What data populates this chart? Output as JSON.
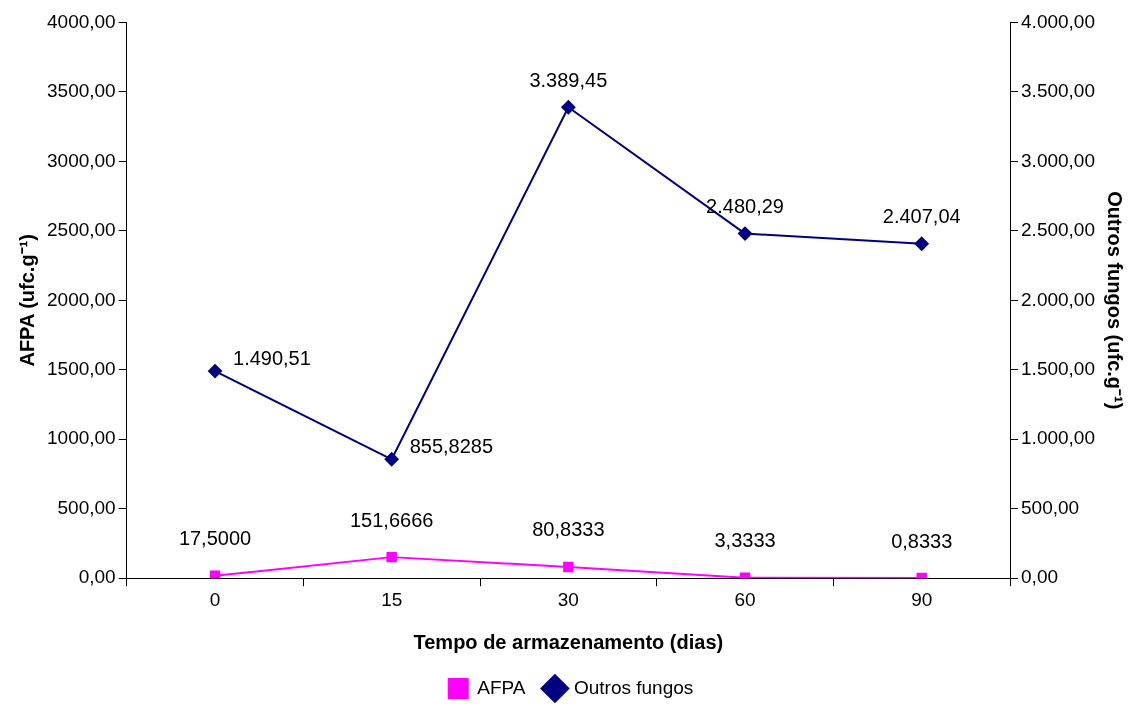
{
  "chart_data": {
    "type": "line",
    "xlabel": "Tempo de armazenamento (dias)",
    "ylabel": "AFPA (ufc.g⁻¹)",
    "y2label": "Outros fungos (ufc.g⁻¹)",
    "categories": [
      "0",
      "15",
      "30",
      "60",
      "90"
    ],
    "series": [
      {
        "name": "AFPA",
        "color": "#ff00ff",
        "marker": "square",
        "values": [
          17.5,
          151.6666,
          80.8333,
          3.3333,
          0.8333
        ],
        "value_labels": [
          "17,5000",
          "151,6666",
          "80,8333",
          "3,3333",
          "0,8333"
        ]
      },
      {
        "name": "Outros fungos",
        "color": "#000080",
        "marker": "diamond",
        "axis": "y2",
        "values": [
          1490.51,
          855.8285,
          3389.45,
          2480.29,
          2407.04
        ],
        "value_labels": [
          "1.490,51",
          "855,8285",
          "3.389,45",
          "2.480,29",
          "2.407,04"
        ]
      }
    ],
    "ylim": [
      0,
      4000
    ],
    "yticks": [
      {
        "value": 0,
        "label": "0,00"
      },
      {
        "value": 500,
        "label": "500,00"
      },
      {
        "value": 1000,
        "label": "1000,00"
      },
      {
        "value": 1500,
        "label": "1500,00"
      },
      {
        "value": 2000,
        "label": "2000,00"
      },
      {
        "value": 2500,
        "label": "2500,00"
      },
      {
        "value": 3000,
        "label": "3000,00"
      },
      {
        "value": 3500,
        "label": "3500,00"
      },
      {
        "value": 4000,
        "label": "4000,00"
      }
    ],
    "y2lim": [
      0,
      4000
    ],
    "y2ticks": [
      {
        "value": 0,
        "label": "0,00"
      },
      {
        "value": 500,
        "label": "500,00"
      },
      {
        "value": 1000,
        "label": "1.000,00"
      },
      {
        "value": 1500,
        "label": "1.500,00"
      },
      {
        "value": 2000,
        "label": "2.000,00"
      },
      {
        "value": 2500,
        "label": "2.500,00"
      },
      {
        "value": 3000,
        "label": "3.000,00"
      },
      {
        "value": 3500,
        "label": "3.500,00"
      },
      {
        "value": 4000,
        "label": "4.000,00"
      }
    ],
    "grid": false,
    "legend": "bottom",
    "line_style": "solid"
  }
}
